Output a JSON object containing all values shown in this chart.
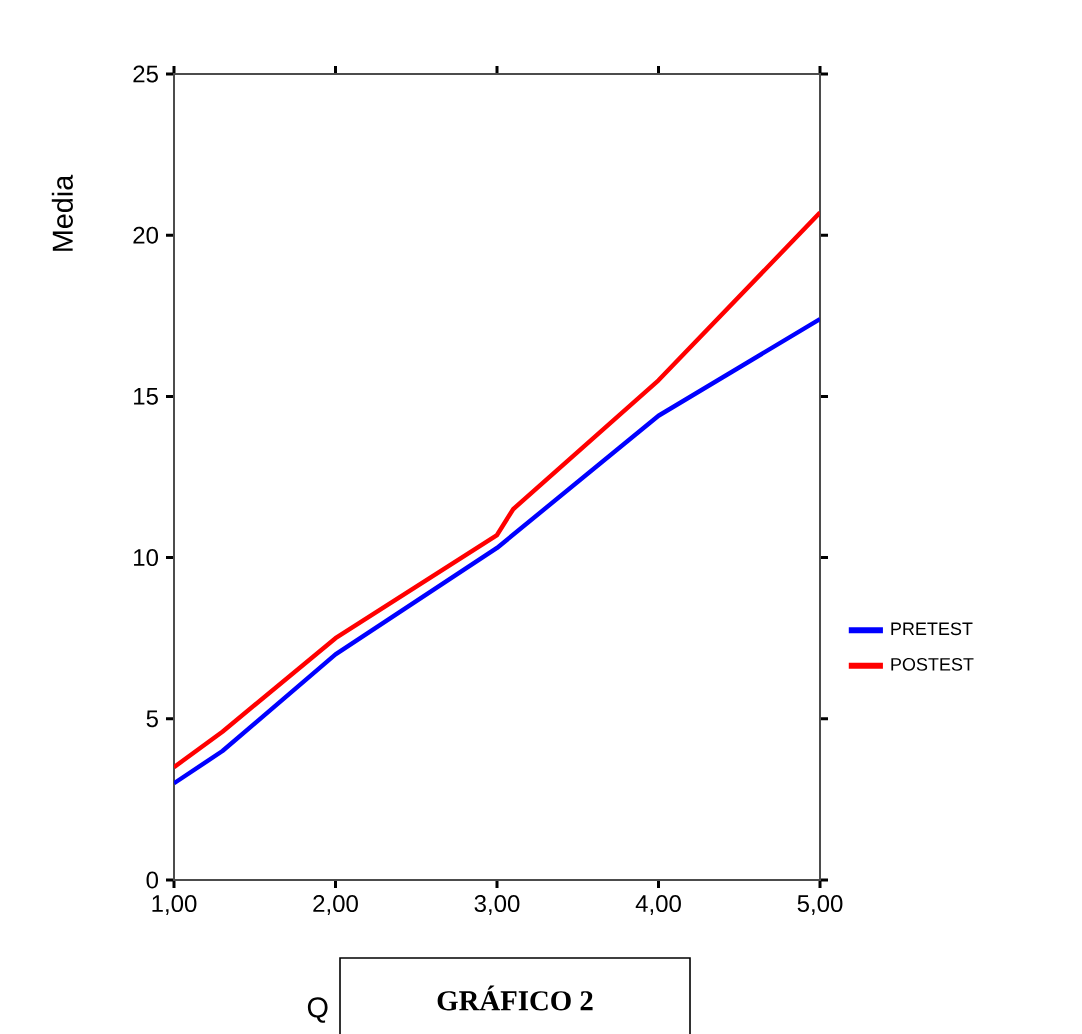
{
  "chart_data": {
    "type": "line",
    "ylabel": "Media",
    "annotations": [
      "Q",
      "GRÁFICO 2"
    ],
    "xlim": [
      1,
      5
    ],
    "ylim": [
      0,
      25
    ],
    "xticks": [
      {
        "value": 1,
        "label": "1,00"
      },
      {
        "value": 2,
        "label": "2,00"
      },
      {
        "value": 3,
        "label": "3,00"
      },
      {
        "value": 4,
        "label": "4,00"
      },
      {
        "value": 5,
        "label": "5,00"
      }
    ],
    "yticks": [
      0,
      5,
      10,
      15,
      20,
      25
    ],
    "legend": "right",
    "grid": false,
    "marker": "none",
    "line_style": "solid",
    "series": [
      {
        "name": "PRETEST",
        "color": "#0000ff",
        "x": [
          1,
          1.3,
          2,
          3,
          4,
          5
        ],
        "values": [
          3.0,
          4.0,
          7.0,
          10.3,
          14.4,
          17.4
        ]
      },
      {
        "name": "POSTEST",
        "color": "#ff0000",
        "x": [
          1,
          1.3,
          2,
          3,
          3.1,
          4,
          5
        ],
        "values": [
          3.5,
          4.6,
          7.5,
          10.7,
          11.5,
          15.5,
          20.7
        ]
      }
    ]
  }
}
